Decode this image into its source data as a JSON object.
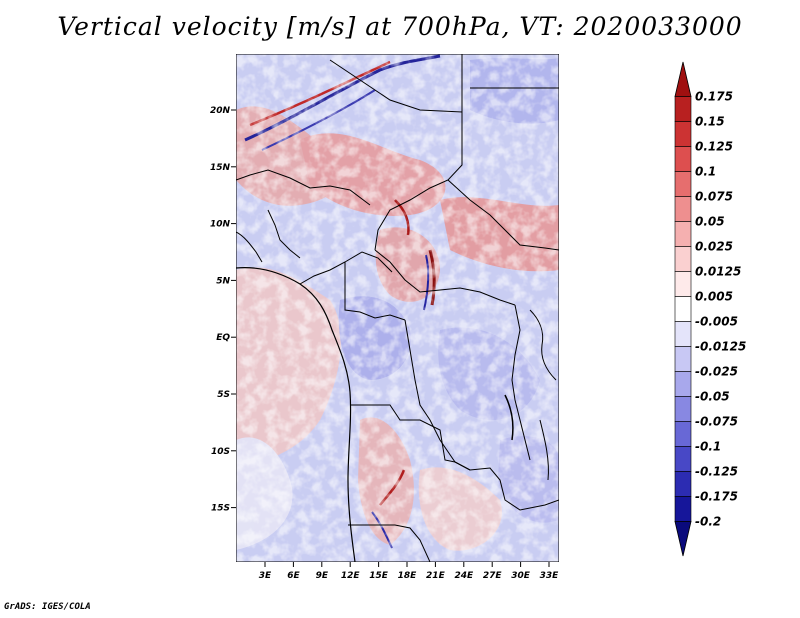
{
  "title": "Vertical velocity [m/s] at 700hPa, VT: 2020033000",
  "credit": "GrADS: IGES/COLA",
  "map": {
    "lon_labels": [
      "3E",
      "6E",
      "9E",
      "12E",
      "15E",
      "18E",
      "21E",
      "24E",
      "27E",
      "30E",
      "33E"
    ],
    "lat_labels": [
      "20N",
      "15N",
      "10N",
      "5N",
      "EQ",
      "5S",
      "10S",
      "15S"
    ]
  },
  "colorbar": {
    "levels": [
      "0.175",
      "0.15",
      "0.125",
      "0.1",
      "0.075",
      "0.05",
      "0.025",
      "0.0125",
      "0.005",
      "-0.005",
      "-0.0125",
      "-0.025",
      "-0.05",
      "-0.075",
      "-0.1",
      "-0.125",
      "-0.175",
      "-0.2"
    ],
    "colors": [
      "#a01010",
      "#b82020",
      "#cc3333",
      "#dd4f4f",
      "#e66e6e",
      "#ee8f8f",
      "#f5b0b0",
      "#fad0d0",
      "#feeaea",
      "#ffffff",
      "#e4e4fa",
      "#c8c8f4",
      "#a8a8ec",
      "#8888e2",
      "#6868d6",
      "#4848c6",
      "#2c2cb2",
      "#16169a",
      "#0a0a7c"
    ]
  }
}
